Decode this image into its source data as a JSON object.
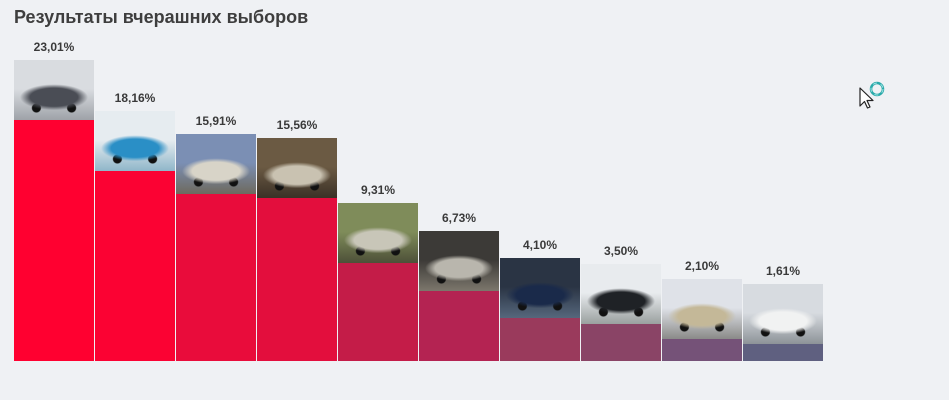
{
  "title": "Результаты вчерашних выборов",
  "chart_data": {
    "type": "bar",
    "title": "Результаты вчерашних выборов",
    "xlabel": "",
    "ylabel": "",
    "ylim": [
      0,
      25
    ],
    "grid": false,
    "legend": "none",
    "categories": [
      "",
      "",
      "",
      "",
      "",
      "",
      "",
      "",
      "",
      ""
    ],
    "values": [
      23.01,
      18.16,
      15.91,
      15.56,
      9.31,
      6.73,
      4.1,
      3.5,
      2.1,
      1.61
    ],
    "data_labels": [
      "23,01%",
      "18,16%",
      "15,91%",
      "15,56%",
      "9,31%",
      "6,73%",
      "4,10%",
      "3,50%",
      "2,10%",
      "1,61%"
    ],
    "bar_colors": [
      "#ff0030",
      "#fb0233",
      "#e90c3b",
      "#e30e3d",
      "#c41c48",
      "#b42352",
      "#9a3a5c",
      "#8a4466",
      "#755278",
      "#5f6080"
    ],
    "bar_images": [
      "black-sedan-photo",
      "blue-suv-in-water-photo",
      "silver-sedan-photo",
      "off-road-vehicle-photo",
      "silver-sports-car-photo",
      "tuned-car-front-photo",
      "dark-sedan-photo",
      "black-suv-photo",
      "silver-hatchback-photo",
      "white-suv-photo"
    ]
  },
  "cursor_icon": "busy-arrow-cursor-icon"
}
